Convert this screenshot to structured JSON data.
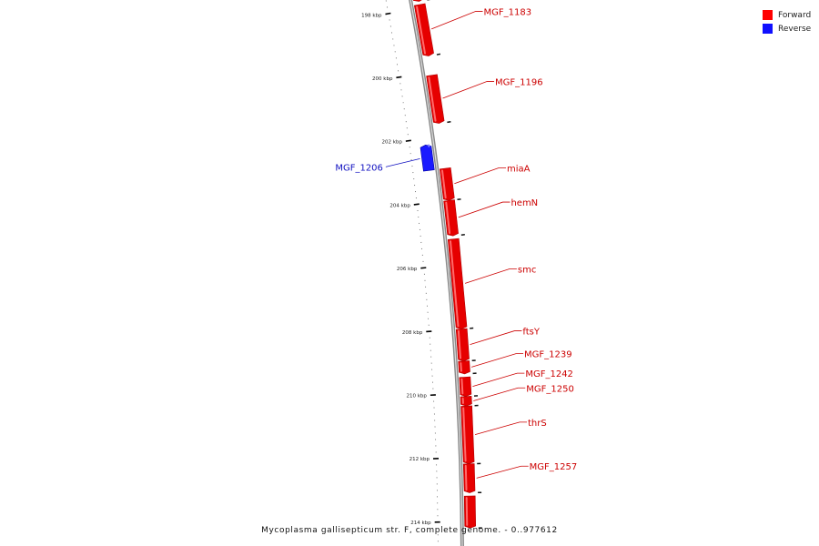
{
  "legend": {
    "forward": {
      "label": "Forward",
      "color": "#ff0000"
    },
    "reverse": {
      "label": "Reverse",
      "color": "#1010ff"
    }
  },
  "caption": "Mycoplasma gallisepticum str. F, complete genome. - 0..977612",
  "colors": {
    "forward_fill": "#e60000",
    "forward_highlight": "#ff6a6a",
    "reverse_fill": "#1a1aff",
    "reverse_highlight": "#7f7fff",
    "backbone": "#8a8a8a",
    "tick": "#000000"
  },
  "ruler": {
    "labels": [
      {
        "kbp": 198,
        "text": "198 kbp"
      },
      {
        "kbp": 200,
        "text": "200 kbp"
      },
      {
        "kbp": 202,
        "text": "202 kbp"
      },
      {
        "kbp": 204,
        "text": "204 kbp"
      },
      {
        "kbp": 206,
        "text": "206 kbp"
      },
      {
        "kbp": 208,
        "text": "208 kbp"
      },
      {
        "kbp": 210,
        "text": "210 kbp"
      },
      {
        "kbp": 212,
        "text": "212 kbp"
      },
      {
        "kbp": 214,
        "text": "214 kbp"
      }
    ],
    "minor_step_kbp": 0.2
  },
  "genes": [
    {
      "name": "",
      "strand": "forward",
      "start_kbp": 197.2,
      "end_kbp": 197.8
    },
    {
      "name": "MGF_1183",
      "strand": "forward",
      "start_kbp": 197.9,
      "end_kbp": 199.5
    },
    {
      "name": "MGF_1196",
      "strand": "forward",
      "start_kbp": 200.1,
      "end_kbp": 201.6
    },
    {
      "name": "MGF_1206",
      "strand": "reverse",
      "start_kbp": 202.2,
      "end_kbp": 203.0
    },
    {
      "name": "miaA",
      "strand": "forward",
      "start_kbp": 203.0,
      "end_kbp": 204.0
    },
    {
      "name": "hemN",
      "strand": "forward",
      "start_kbp": 204.0,
      "end_kbp": 205.1
    },
    {
      "name": "smc",
      "strand": "forward",
      "start_kbp": 205.2,
      "end_kbp": 208.0
    },
    {
      "name": "ftsY",
      "strand": "forward",
      "start_kbp": 208.0,
      "end_kbp": 209.0
    },
    {
      "name": "MGF_1239",
      "strand": "forward",
      "start_kbp": 209.0,
      "end_kbp": 209.4
    },
    {
      "name": "MGF_1242",
      "strand": "forward",
      "start_kbp": 209.5,
      "end_kbp": 210.1
    },
    {
      "name": "MGF_1250",
      "strand": "forward",
      "start_kbp": 210.1,
      "end_kbp": 210.4
    },
    {
      "name": "thrS",
      "strand": "forward",
      "start_kbp": 210.4,
      "end_kbp": 212.2
    },
    {
      "name": "MGF_1257",
      "strand": "forward",
      "start_kbp": 212.2,
      "end_kbp": 213.1
    },
    {
      "name": "",
      "strand": "forward",
      "start_kbp": 213.2,
      "end_kbp": 214.2
    }
  ]
}
